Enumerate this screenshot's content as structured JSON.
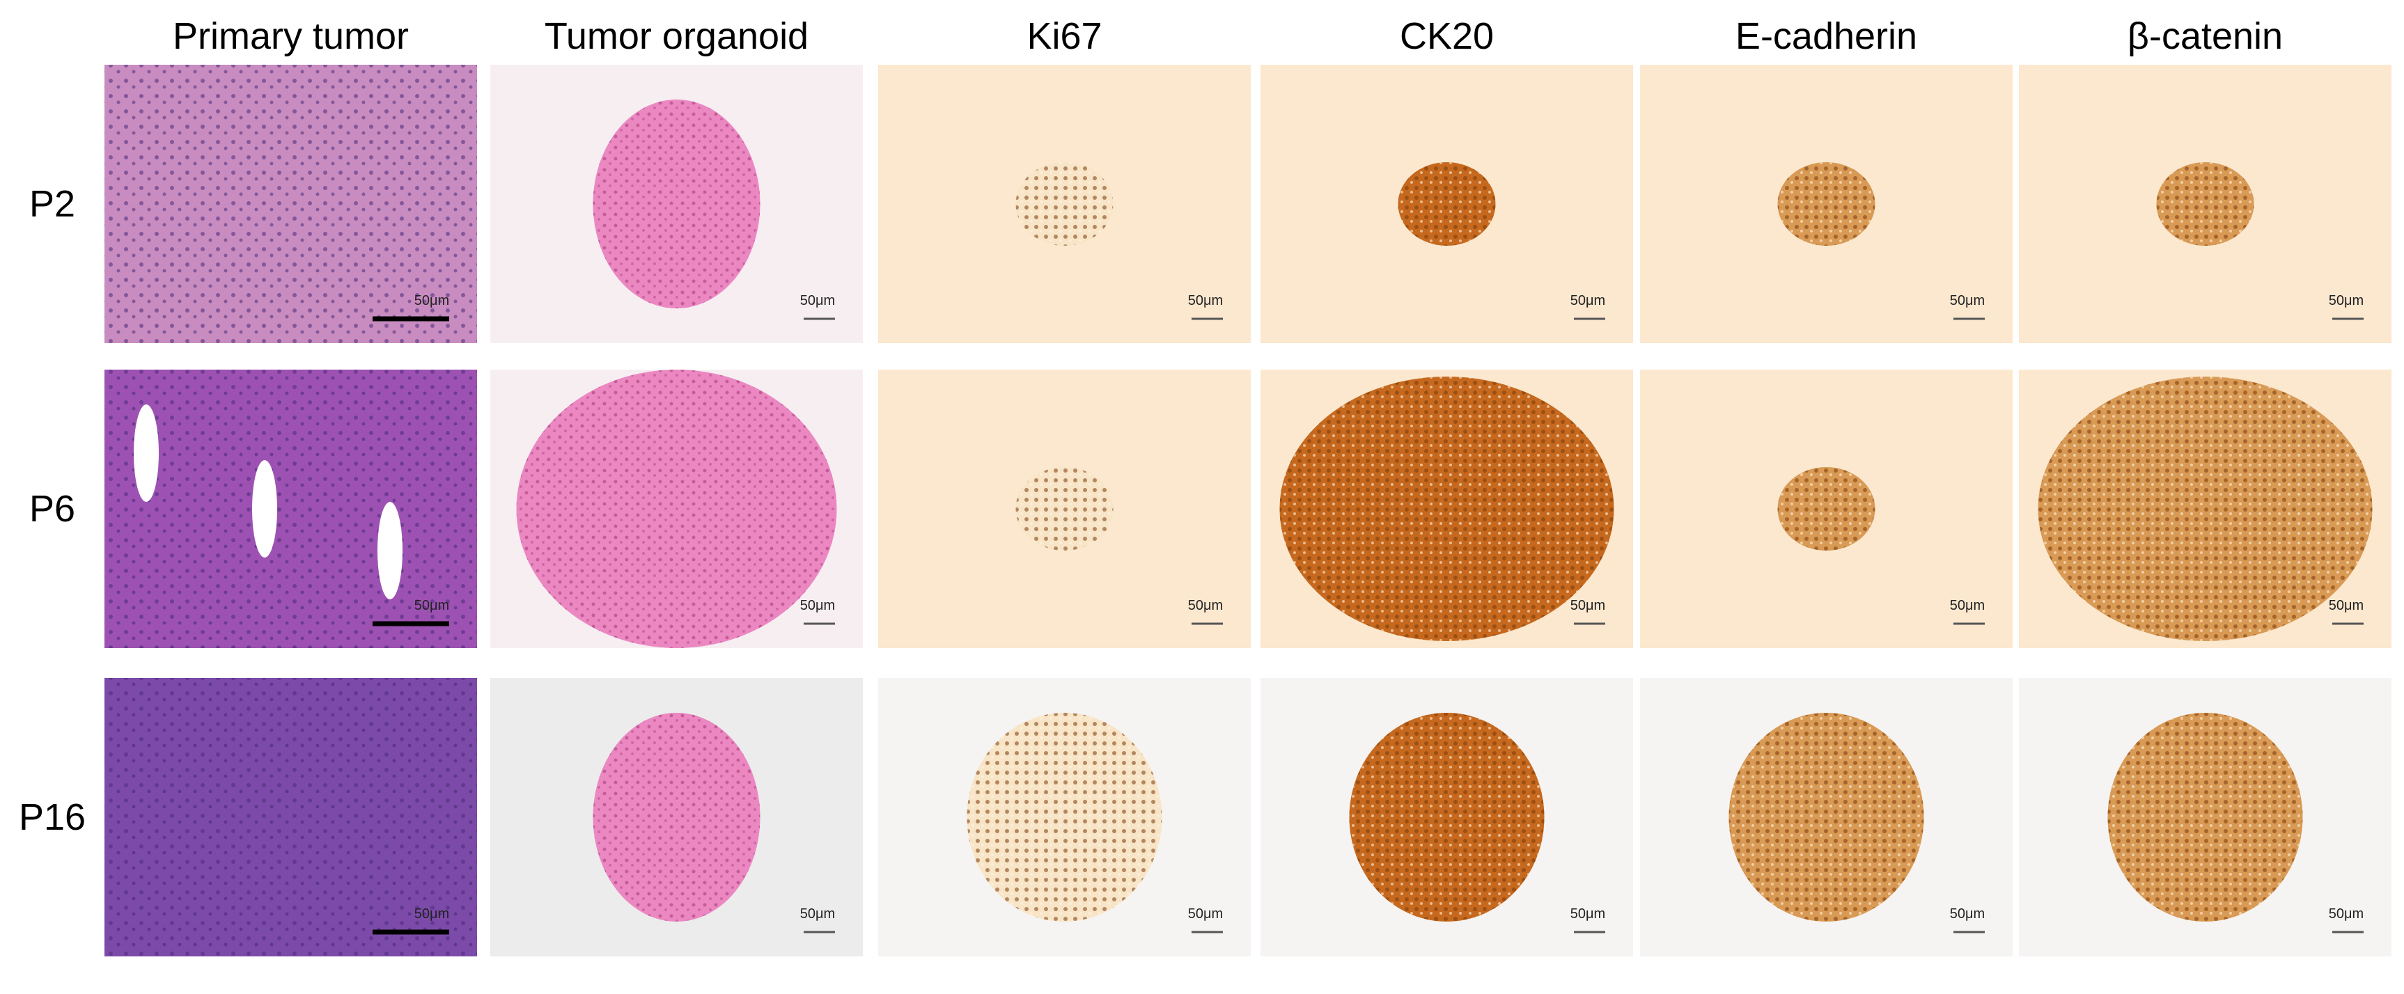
{
  "columns": [
    "Primary tumor",
    "Tumor organoid",
    "Ki67",
    "CK20",
    "E-cadherin",
    "β-catenin"
  ],
  "rows": [
    {
      "label": "P2",
      "scale_labels": [
        "50μm",
        "50μm",
        "50μm",
        "50μm",
        "50μm",
        "50μm"
      ]
    },
    {
      "label": "P6",
      "scale_labels": [
        "50μm",
        "50μm",
        "50μm",
        "50μm",
        "50μm",
        "50μm"
      ]
    },
    {
      "label": "P16",
      "scale_labels": [
        "50μm",
        "50μm",
        "50μm",
        "50μm",
        "50μm",
        "50μm"
      ]
    }
  ]
}
